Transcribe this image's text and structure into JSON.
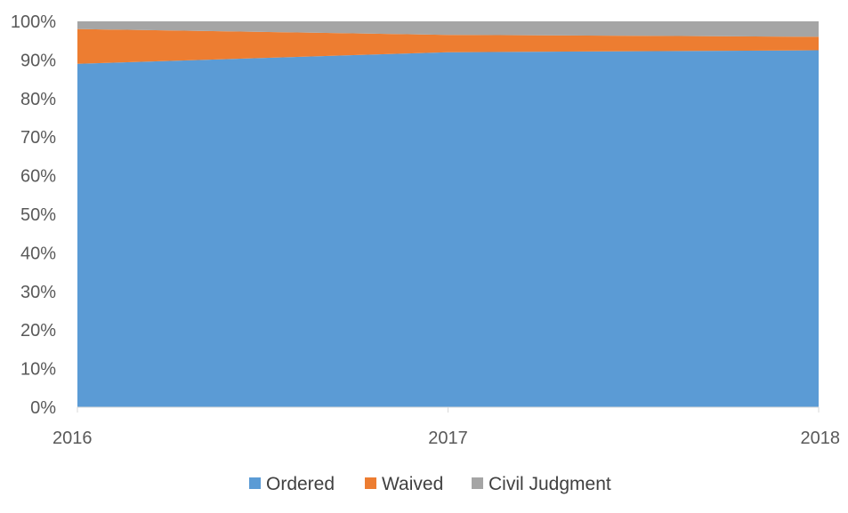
{
  "chart_data": {
    "type": "area",
    "stacked": "percent",
    "x": [
      "2016",
      "2017",
      "2018"
    ],
    "series": [
      {
        "name": "Ordered",
        "values": [
          89,
          92,
          92.5
        ],
        "color": "#5B9BD5"
      },
      {
        "name": "Waived",
        "values": [
          9,
          4.5,
          3.5
        ],
        "color": "#ED7D31"
      },
      {
        "name": "Civil Judgment",
        "values": [
          2,
          3.5,
          4
        ],
        "color": "#A5A5A5"
      }
    ],
    "y_ticks": [
      "0%",
      "10%",
      "20%",
      "30%",
      "40%",
      "50%",
      "60%",
      "70%",
      "80%",
      "90%",
      "100%"
    ],
    "ylim": [
      0,
      100
    ],
    "grid": false,
    "legend": "bottom"
  }
}
